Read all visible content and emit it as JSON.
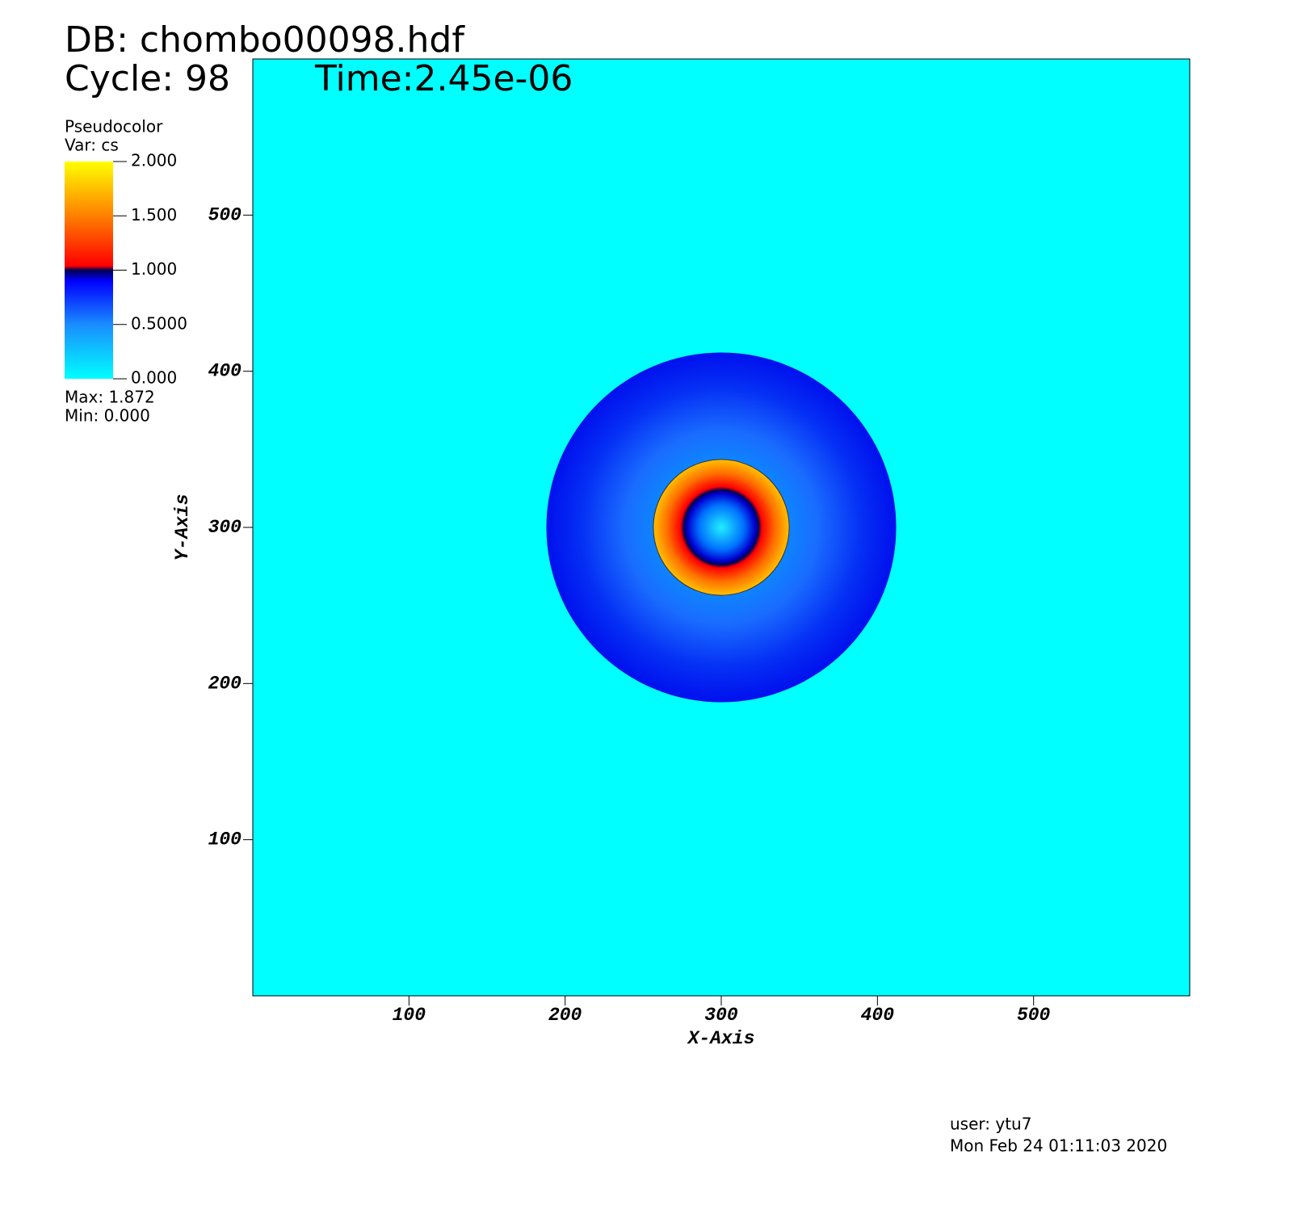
{
  "chart_data": {
    "type": "pseudocolor",
    "db_label": "DB: chombo00098.hdf",
    "cycle_label": "Cycle: 98",
    "time_label": "Time:2.45e-06",
    "plot_label": "Pseudocolor",
    "var_label": "Var: cs",
    "max_label": "Max:  1.872",
    "min_label": "Min:  0.000",
    "x_label": "X-Axis",
    "y_label": "Y-Axis",
    "user_label": "user: ytu7",
    "date_label": "Mon Feb 24 01:11:03 2020",
    "background_color": "#00ffff",
    "xlim": [
      0,
      600
    ],
    "ylim": [
      0,
      600
    ],
    "xticks": [
      100,
      200,
      300,
      400,
      500
    ],
    "yticks": [
      100,
      200,
      300,
      400,
      500
    ],
    "center": [
      300,
      300
    ],
    "radii": [
      112,
      43.5,
      24
    ],
    "colorbar_lim": [
      0,
      2
    ],
    "colorbar_ticks": [
      {
        "value": 2,
        "label": "2.000"
      },
      {
        "value": 1.5,
        "label": "1.500"
      },
      {
        "value": 1,
        "label": "1.000"
      },
      {
        "value": 0.5,
        "label": "0.5000"
      },
      {
        "value": 0,
        "label": "0.000"
      }
    ]
  }
}
